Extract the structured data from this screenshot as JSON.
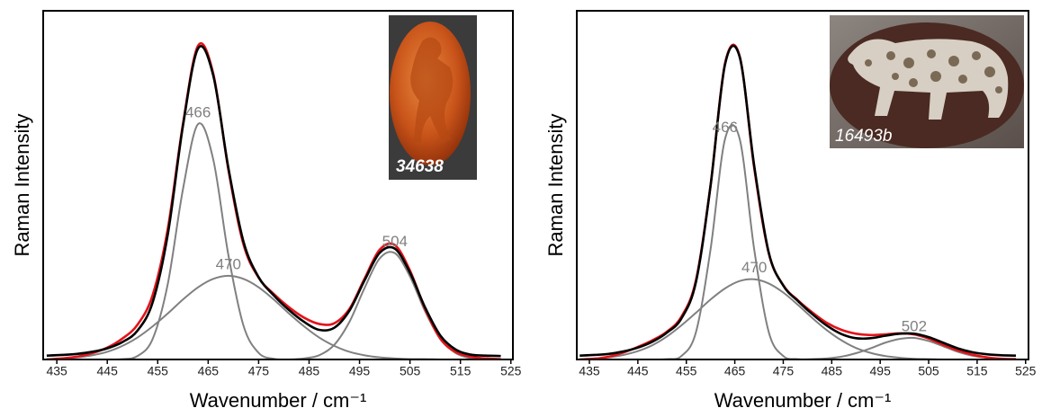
{
  "chart_data": [
    {
      "type": "line",
      "xlabel": "Wavenumber / cm⁻¹",
      "ylabel": "Raman Intensity",
      "inset_label": "34638",
      "xlim": [
        432.3,
        525.4
      ],
      "ylim": [
        0,
        100
      ],
      "xticks": [
        435,
        445,
        455,
        465,
        475,
        485,
        495,
        505,
        515,
        525
      ],
      "x": [
        433,
        436,
        439,
        442,
        445,
        448,
        451,
        454,
        457,
        460,
        463,
        466,
        469,
        472,
        475,
        478,
        481,
        484,
        487,
        490,
        493,
        496,
        499,
        502,
        505,
        508,
        511,
        514,
        517,
        520,
        523
      ],
      "series": [
        {
          "name": "466",
          "color": "#808080",
          "values": [
            0,
            0,
            0,
            0,
            0,
            0.1,
            1.0,
            5.9,
            21.7,
            48.8,
            67.5,
            57.4,
            30.0,
            9.7,
            1.9,
            0.2,
            0,
            0,
            0,
            0,
            0,
            0,
            0,
            0,
            0,
            0,
            0,
            0,
            0,
            0,
            0
          ]
        },
        {
          "name": "470",
          "color": "#808080",
          "values": [
            0.1,
            0.3,
            0.6,
            1.2,
            2.2,
            3.9,
            6.3,
            9.5,
            13.2,
            17.2,
            20.7,
            23.1,
            24.0,
            23.1,
            20.7,
            17.2,
            13.2,
            9.5,
            6.3,
            3.9,
            2.2,
            1.2,
            0.6,
            0.3,
            0.1,
            0.1,
            0,
            0,
            0,
            0,
            0
          ]
        },
        {
          "name": "504",
          "color": "#808080",
          "values": [
            0,
            0,
            0,
            0,
            0,
            0,
            0,
            0,
            0,
            0,
            0,
            0,
            0,
            0,
            0,
            0,
            0,
            0.3,
            1.2,
            4.2,
            10.8,
            20.5,
            29.0,
            30.5,
            23.8,
            13.8,
            5.9,
            1.9,
            0.4,
            0.1,
            0
          ]
        },
        {
          "color": "#e3131b",
          "values": [
            0,
            0.3,
            0.8,
            1.8,
            3.4,
            6.0,
            10.0,
            18.5,
            37.5,
            67.5,
            90.0,
            82.0,
            54.5,
            33.0,
            23.5,
            18.8,
            15.0,
            12.0,
            10.2,
            10.4,
            14.5,
            23.2,
            31.5,
            32.8,
            25.5,
            14.5,
            6.0,
            2.2,
            0.8,
            0.3,
            0.1
          ]
        },
        {
          "color": "#000000",
          "values": [
            1.1,
            1.3,
            1.6,
            2.2,
            3.2,
            5.0,
            8.3,
            16.4,
            35.9,
            67.0,
            89.2,
            81.5,
            55.0,
            33.8,
            23.6,
            18.4,
            14.2,
            10.8,
            8.5,
            9.1,
            14.0,
            22.7,
            30.6,
            31.8,
            24.9,
            14.9,
            6.9,
            2.9,
            1.4,
            1.1,
            1.0
          ]
        }
      ]
    },
    {
      "type": "line",
      "xlabel": "Wavenumber / cm⁻¹",
      "ylabel": "Raman Intensity",
      "inset_label": "16493b",
      "xlim": [
        432.4,
        525.6
      ],
      "ylim": [
        0,
        100
      ],
      "xticks": [
        435,
        445,
        455,
        465,
        475,
        485,
        495,
        505,
        515,
        525
      ],
      "x": [
        433,
        436,
        439,
        442,
        445,
        448,
        451,
        454,
        457,
        460,
        463,
        466,
        469,
        472,
        475,
        478,
        481,
        484,
        487,
        490,
        493,
        496,
        499,
        502,
        505,
        508,
        511,
        514,
        517,
        520,
        523
      ],
      "series": [
        {
          "name": "466",
          "color": "#808080",
          "values": [
            0,
            0,
            0,
            0,
            0,
            0,
            0.1,
            1.0,
            7.9,
            31.6,
            63.3,
            63.3,
            31.6,
            7.9,
            1.0,
            0.1,
            0,
            0,
            0,
            0,
            0,
            0,
            0,
            0,
            0,
            0,
            0,
            0,
            0,
            0,
            0
          ]
        },
        {
          "name": "470",
          "color": "#808080",
          "values": [
            0.1,
            0.3,
            0.6,
            1.3,
            2.4,
            4.1,
            6.6,
            9.8,
            13.4,
            17.2,
            20.4,
            22.5,
            23.0,
            21.8,
            19.2,
            15.7,
            11.9,
            8.4,
            5.5,
            3.3,
            1.9,
            1.0,
            0.5,
            0.2,
            0.1,
            0,
            0,
            0,
            0,
            0,
            0
          ]
        },
        {
          "name": "502",
          "color": "#808080",
          "values": [
            0,
            0,
            0,
            0,
            0,
            0,
            0,
            0,
            0,
            0,
            0,
            0,
            0,
            0,
            0,
            0,
            0.1,
            0.3,
            0.8,
            1.8,
            3.2,
            4.8,
            5.9,
            6.2,
            5.3,
            3.8,
            2.2,
            1.1,
            0.5,
            0.2,
            0.1
          ]
        },
        {
          "color": "#e3131b",
          "values": [
            0,
            0.2,
            0.8,
            2.0,
            3.6,
            5.5,
            8.0,
            12.3,
            22.8,
            50.0,
            85.0,
            87.0,
            55.0,
            30.5,
            21.3,
            17.0,
            13.5,
            10.5,
            8.5,
            7.4,
            7.0,
            7.2,
            7.5,
            7.2,
            6.0,
            4.2,
            2.6,
            1.4,
            0.6,
            0.2,
            0.1
          ]
        },
        {
          "color": "#000000",
          "values": [
            1.1,
            1.3,
            1.6,
            2.3,
            3.4,
            5.1,
            7.7,
            11.8,
            22.3,
            49.8,
            84.7,
            86.8,
            55.6,
            30.7,
            21.2,
            16.8,
            13.0,
            9.7,
            7.3,
            6.1,
            6.1,
            6.8,
            7.4,
            7.4,
            6.4,
            4.8,
            3.2,
            2.1,
            1.5,
            1.2,
            1.1
          ]
        }
      ]
    }
  ]
}
